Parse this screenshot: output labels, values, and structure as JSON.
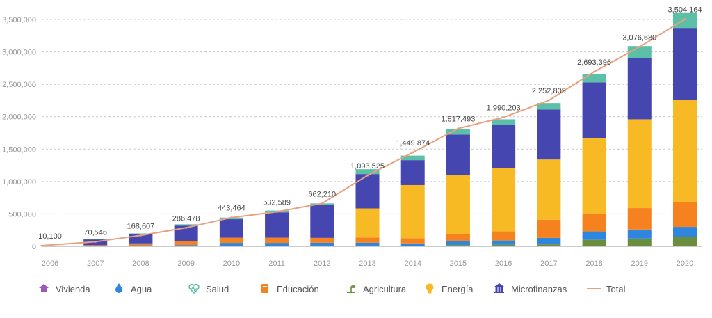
{
  "chart_data": {
    "type": "bar",
    "stacked": true,
    "title": "",
    "xlabel": "",
    "ylabel": "",
    "ylim": [
      0,
      3500000
    ],
    "yticks": [
      0,
      500000,
      1000000,
      1500000,
      2000000,
      2500000,
      3000000,
      3500000
    ],
    "ytick_labels": [
      "0",
      "500,000",
      "1,000,000",
      "1,500,000",
      "2,000,000",
      "2,500,000",
      "3,000,000",
      "3,500,000"
    ],
    "grid": true,
    "legend_position": "bottom",
    "categories": [
      "2006",
      "2007",
      "2008",
      "2009",
      "2010",
      "2011",
      "2012",
      "2013",
      "2014",
      "2015",
      "2016",
      "2017",
      "2018",
      "2019",
      "2020"
    ],
    "series": [
      {
        "name": "Vivienda",
        "color": "#9b59b6",
        "icon": "house-icon",
        "values": [
          0,
          0,
          0,
          0,
          0,
          0,
          0,
          0,
          0,
          0,
          0,
          0,
          0,
          0,
          0
        ]
      },
      {
        "name": "Agua",
        "color": "#2e86de",
        "icon": "water-drop-icon",
        "values": [
          0,
          5000,
          10000,
          15000,
          45000,
          45000,
          45000,
          45000,
          35000,
          65000,
          65000,
          100000,
          130000,
          140000,
          160000
        ]
      },
      {
        "name": "Salud",
        "color": "#5cbfa8",
        "icon": "heart-pulse-icon",
        "values": [
          0,
          2000,
          4000,
          20000,
          25000,
          28000,
          20000,
          75000,
          70000,
          90000,
          90000,
          100000,
          130000,
          190000,
          240000
        ]
      },
      {
        "name": "Educación",
        "color": "#f5821f",
        "icon": "book-icon",
        "values": [
          10100,
          10000,
          30000,
          60000,
          80000,
          80000,
          75000,
          80000,
          80000,
          100000,
          140000,
          280000,
          270000,
          330000,
          380000
        ]
      },
      {
        "name": "Agricultura",
        "color": "#6b8e3c",
        "icon": "sprout-icon",
        "values": [
          0,
          3000,
          5000,
          5000,
          8000,
          8000,
          10000,
          10000,
          10000,
          20000,
          25000,
          30000,
          100000,
          120000,
          140000
        ]
      },
      {
        "name": "Energía",
        "color": "#f7b924",
        "icon": "lightbulb-icon",
        "values": [
          0,
          0,
          0,
          0,
          0,
          0,
          0,
          450000,
          820000,
          920000,
          980000,
          930000,
          1170000,
          1370000,
          1580000
        ]
      },
      {
        "name": "Microfinanzas",
        "color": "#4646b0",
        "icon": "bank-icon",
        "values": [
          0,
          90000,
          150000,
          240000,
          285000,
          391000,
          512000,
          530000,
          385000,
          620000,
          660000,
          770000,
          860000,
          940000,
          1110000
        ]
      }
    ],
    "total": {
      "name": "Total",
      "color": "#e9a07e",
      "values": [
        10100,
        70546,
        168607,
        286478,
        443464,
        532589,
        662210,
        1093525,
        1449874,
        1817493,
        1990203,
        2252809,
        2693396,
        3076680,
        3504164
      ],
      "labels": [
        "10,100",
        "70,546",
        "168,607",
        "286,478",
        "443,464",
        "532,589",
        "662,210",
        "1,093,525",
        "1,449,874",
        "1,817,493",
        "1,990,203",
        "2,252,809",
        "2,693,396",
        "3,076,680",
        "3,504,164"
      ]
    }
  }
}
